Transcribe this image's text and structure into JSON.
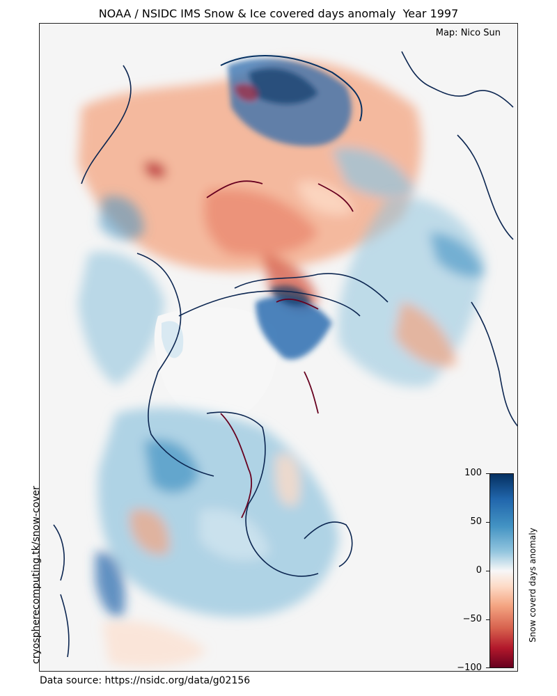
{
  "title": "NOAA / NSIDC IMS Snow & Ice covered days anomaly  Year 1997",
  "credit": "Map: Nico Sun",
  "website": "cryospherecomputing.tk/snow-cover",
  "source": "Data source: https://nsidc.org/data/g02156",
  "colorbar": {
    "label": "Snow coverd days anomaly",
    "ticks": [
      "100",
      "50",
      "0",
      "−50",
      "−100"
    ],
    "min": -100,
    "max": 100,
    "colormap": "RdBu",
    "colors": [
      "#053061",
      "#2166ac",
      "#4393c3",
      "#92c5de",
      "#f7f7f7",
      "#fddbc7",
      "#f4a582",
      "#d6604d",
      "#b2182b",
      "#67001f"
    ]
  },
  "legend_label": "Snow coverd days anomaly"
}
